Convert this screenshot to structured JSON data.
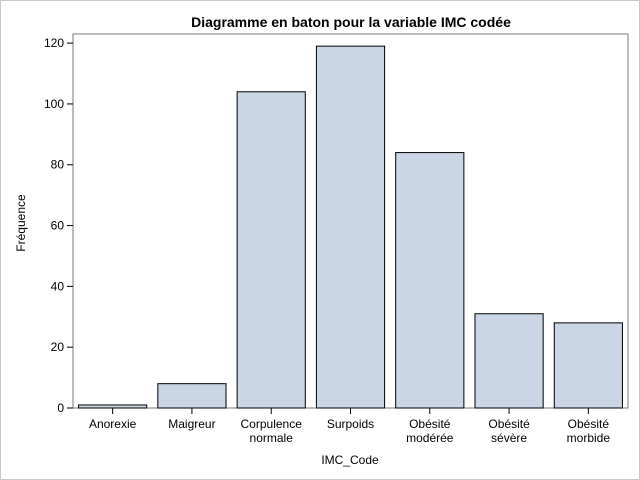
{
  "chart_data": {
    "type": "bar",
    "title": "Diagramme en baton pour la variable IMC codée",
    "xlabel": "IMC_Code",
    "ylabel": "Fréquence",
    "categories": [
      [
        "Anorexie"
      ],
      [
        "Maigreur"
      ],
      [
        "Corpulence",
        "normale"
      ],
      [
        "Surpoids"
      ],
      [
        "Obésité",
        "modérée"
      ],
      [
        "Obésité",
        "sévère"
      ],
      [
        "Obésité",
        "morbide"
      ]
    ],
    "values": [
      1,
      8,
      104,
      119,
      84,
      31,
      28
    ],
    "ylim": [
      0,
      123
    ],
    "yticks": [
      0,
      20,
      40,
      60,
      80,
      100,
      120
    ],
    "grid": false,
    "bar_fill": "#cad5e5",
    "bar_stroke": "#000000"
  }
}
